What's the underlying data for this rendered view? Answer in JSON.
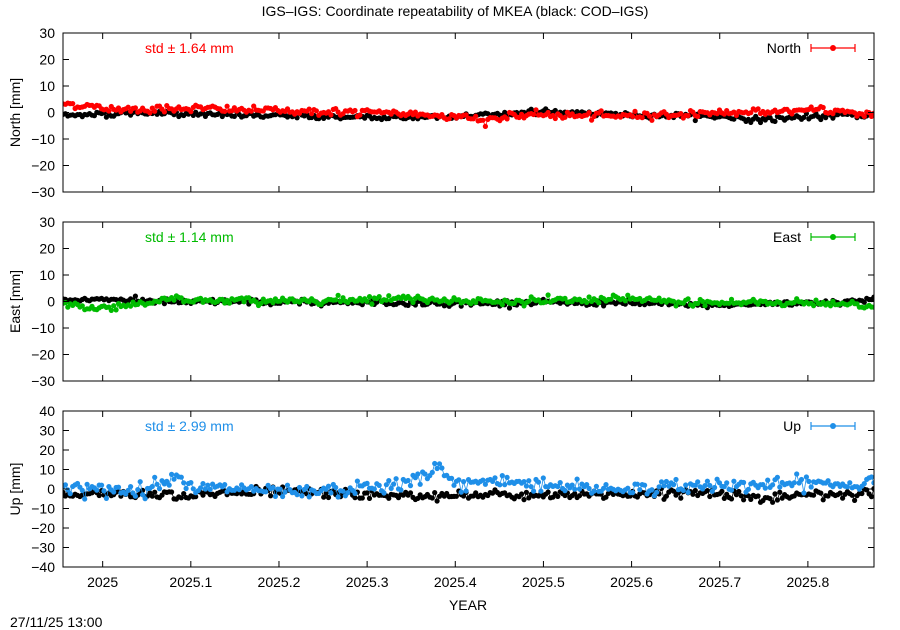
{
  "chart_data": {
    "type": "scatter",
    "title": "IGS–IGS: Coordinate repeatability of MKEA (black: COD–IGS)",
    "xlabel": "YEAR",
    "timestamp": "27/11/25 13:00",
    "xlim": [
      2024.955,
      2025.875
    ],
    "x_ticks": [
      2025,
      2025.1,
      2025.2,
      2025.3,
      2025.4,
      2025.5,
      2025.6,
      2025.7,
      2025.8
    ],
    "x_tick_labels": [
      "2025",
      "2025.1",
      "2025.2",
      "2025.3",
      "2025.4",
      "2025.5",
      "2025.6",
      "2025.7",
      "2025.8"
    ],
    "grid": false,
    "panels": [
      {
        "ylabel": "North [mm]",
        "ylim": [
          -30,
          30
        ],
        "y_ticks": [
          -30,
          -20,
          -10,
          0,
          10,
          20,
          30
        ],
        "y_tick_labels": [
          "−30",
          "−20",
          "−10",
          "0",
          "10",
          "20",
          "30"
        ],
        "std_label": "std ± 1.64 mm",
        "legend_label": "North",
        "color": "#ff0000",
        "comparison_color": "#000000",
        "series_main": [
          [
            2024.955,
            3.5
          ],
          [
            2024.98,
            2.5
          ],
          [
            2025.0,
            1.5
          ],
          [
            2025.05,
            1.2
          ],
          [
            2025.1,
            1.8
          ],
          [
            2025.15,
            1.0
          ],
          [
            2025.2,
            0.8
          ],
          [
            2025.25,
            0.2
          ],
          [
            2025.3,
            0.0
          ],
          [
            2025.35,
            -0.6
          ],
          [
            2025.4,
            -1.2
          ],
          [
            2025.43,
            -3.0
          ],
          [
            2025.47,
            -1.2
          ],
          [
            2025.5,
            -0.8
          ],
          [
            2025.55,
            -1.5
          ],
          [
            2025.6,
            -1.0
          ],
          [
            2025.65,
            -0.8
          ],
          [
            2025.7,
            0.0
          ],
          [
            2025.75,
            0.3
          ],
          [
            2025.8,
            0.8
          ],
          [
            2025.85,
            0.3
          ],
          [
            2025.875,
            -1.0
          ]
        ],
        "series_comparison": [
          [
            2024.955,
            -1.2
          ],
          [
            2025.0,
            -0.5
          ],
          [
            2025.05,
            -0.2
          ],
          [
            2025.1,
            -0.6
          ],
          [
            2025.15,
            -1.0
          ],
          [
            2025.2,
            -1.3
          ],
          [
            2025.25,
            -1.6
          ],
          [
            2025.3,
            -1.8
          ],
          [
            2025.35,
            -1.8
          ],
          [
            2025.4,
            -1.5
          ],
          [
            2025.45,
            -0.5
          ],
          [
            2025.5,
            0.3
          ],
          [
            2025.55,
            -0.2
          ],
          [
            2025.6,
            -1.0
          ],
          [
            2025.65,
            -1.2
          ],
          [
            2025.7,
            -1.5
          ],
          [
            2025.75,
            -2.8
          ],
          [
            2025.8,
            -1.5
          ],
          [
            2025.85,
            -1.0
          ],
          [
            2025.875,
            -1.2
          ]
        ]
      },
      {
        "ylabel": "East [mm]",
        "ylim": [
          -30,
          30
        ],
        "y_ticks": [
          -30,
          -20,
          -10,
          0,
          10,
          20,
          30
        ],
        "y_tick_labels": [
          "−30",
          "−20",
          "−10",
          "0",
          "10",
          "20",
          "30"
        ],
        "std_label": "std ± 1.14 mm",
        "legend_label": "East",
        "color": "#00bb00",
        "comparison_color": "#000000",
        "series_main": [
          [
            2024.955,
            -0.8
          ],
          [
            2024.97,
            -1.5
          ],
          [
            2024.99,
            -2.8
          ],
          [
            2025.02,
            -1.5
          ],
          [
            2025.05,
            -0.5
          ],
          [
            2025.08,
            1.2
          ],
          [
            2025.1,
            0.0
          ],
          [
            2025.15,
            0.5
          ],
          [
            2025.2,
            0.2
          ],
          [
            2025.25,
            0.5
          ],
          [
            2025.3,
            1.0
          ],
          [
            2025.35,
            1.2
          ],
          [
            2025.4,
            0.5
          ],
          [
            2025.45,
            -0.3
          ],
          [
            2025.5,
            0.2
          ],
          [
            2025.55,
            0.5
          ],
          [
            2025.6,
            1.0
          ],
          [
            2025.65,
            -0.2
          ],
          [
            2025.7,
            -0.5
          ],
          [
            2025.75,
            -0.3
          ],
          [
            2025.8,
            -0.5
          ],
          [
            2025.85,
            -1.0
          ],
          [
            2025.875,
            -2.0
          ]
        ],
        "series_comparison": [
          [
            2024.955,
            0.5
          ],
          [
            2025.0,
            1.0
          ],
          [
            2025.05,
            0.2
          ],
          [
            2025.1,
            -0.3
          ],
          [
            2025.15,
            0.0
          ],
          [
            2025.2,
            -0.5
          ],
          [
            2025.25,
            -0.4
          ],
          [
            2025.3,
            -0.3
          ],
          [
            2025.35,
            -0.6
          ],
          [
            2025.4,
            -0.8
          ],
          [
            2025.45,
            -0.5
          ],
          [
            2025.5,
            -0.3
          ],
          [
            2025.55,
            -0.6
          ],
          [
            2025.6,
            -0.4
          ],
          [
            2025.65,
            -1.2
          ],
          [
            2025.7,
            -1.5
          ],
          [
            2025.75,
            -0.8
          ],
          [
            2025.8,
            -0.5
          ],
          [
            2025.85,
            0.2
          ],
          [
            2025.875,
            0.8
          ]
        ]
      },
      {
        "ylabel": "Up [mm]",
        "ylim": [
          -40,
          40
        ],
        "y_ticks": [
          -40,
          -30,
          -20,
          -10,
          0,
          10,
          20,
          30,
          40
        ],
        "y_tick_labels": [
          "−40",
          "−30",
          "−20",
          "−10",
          "0",
          "10",
          "20",
          "30",
          "40"
        ],
        "std_label": "std ± 2.99 mm",
        "legend_label": "Up",
        "color": "#1f8fe8",
        "comparison_color": "#000000",
        "series_main": [
          [
            2024.955,
            1.5
          ],
          [
            2025.0,
            -1.0
          ],
          [
            2025.05,
            -0.5
          ],
          [
            2025.08,
            8.0
          ],
          [
            2025.1,
            0.0
          ],
          [
            2025.15,
            0.5
          ],
          [
            2025.2,
            -2.5
          ],
          [
            2025.25,
            -1.5
          ],
          [
            2025.3,
            0.5
          ],
          [
            2025.35,
            3.0
          ],
          [
            2025.38,
            11.5
          ],
          [
            2025.4,
            2.0
          ],
          [
            2025.45,
            4.5
          ],
          [
            2025.5,
            2.5
          ],
          [
            2025.55,
            0.5
          ],
          [
            2025.6,
            0.0
          ],
          [
            2025.65,
            1.0
          ],
          [
            2025.7,
            2.5
          ],
          [
            2025.75,
            1.5
          ],
          [
            2025.8,
            3.5
          ],
          [
            2025.85,
            1.5
          ],
          [
            2025.875,
            6.0
          ]
        ],
        "series_comparison": [
          [
            2024.955,
            -4.0
          ],
          [
            2025.0,
            -2.0
          ],
          [
            2025.05,
            -2.5
          ],
          [
            2025.1,
            -3.0
          ],
          [
            2025.15,
            -2.0
          ],
          [
            2025.2,
            -1.0
          ],
          [
            2025.25,
            -2.0
          ],
          [
            2025.3,
            -3.0
          ],
          [
            2025.35,
            -3.5
          ],
          [
            2025.4,
            -3.5
          ],
          [
            2025.45,
            -3.0
          ],
          [
            2025.5,
            -4.0
          ],
          [
            2025.55,
            -3.0
          ],
          [
            2025.6,
            -2.5
          ],
          [
            2025.65,
            -2.0
          ],
          [
            2025.7,
            -2.0
          ],
          [
            2025.75,
            -5.0
          ],
          [
            2025.8,
            -3.0
          ],
          [
            2025.85,
            -2.0
          ],
          [
            2025.875,
            -2.5
          ]
        ]
      }
    ]
  }
}
